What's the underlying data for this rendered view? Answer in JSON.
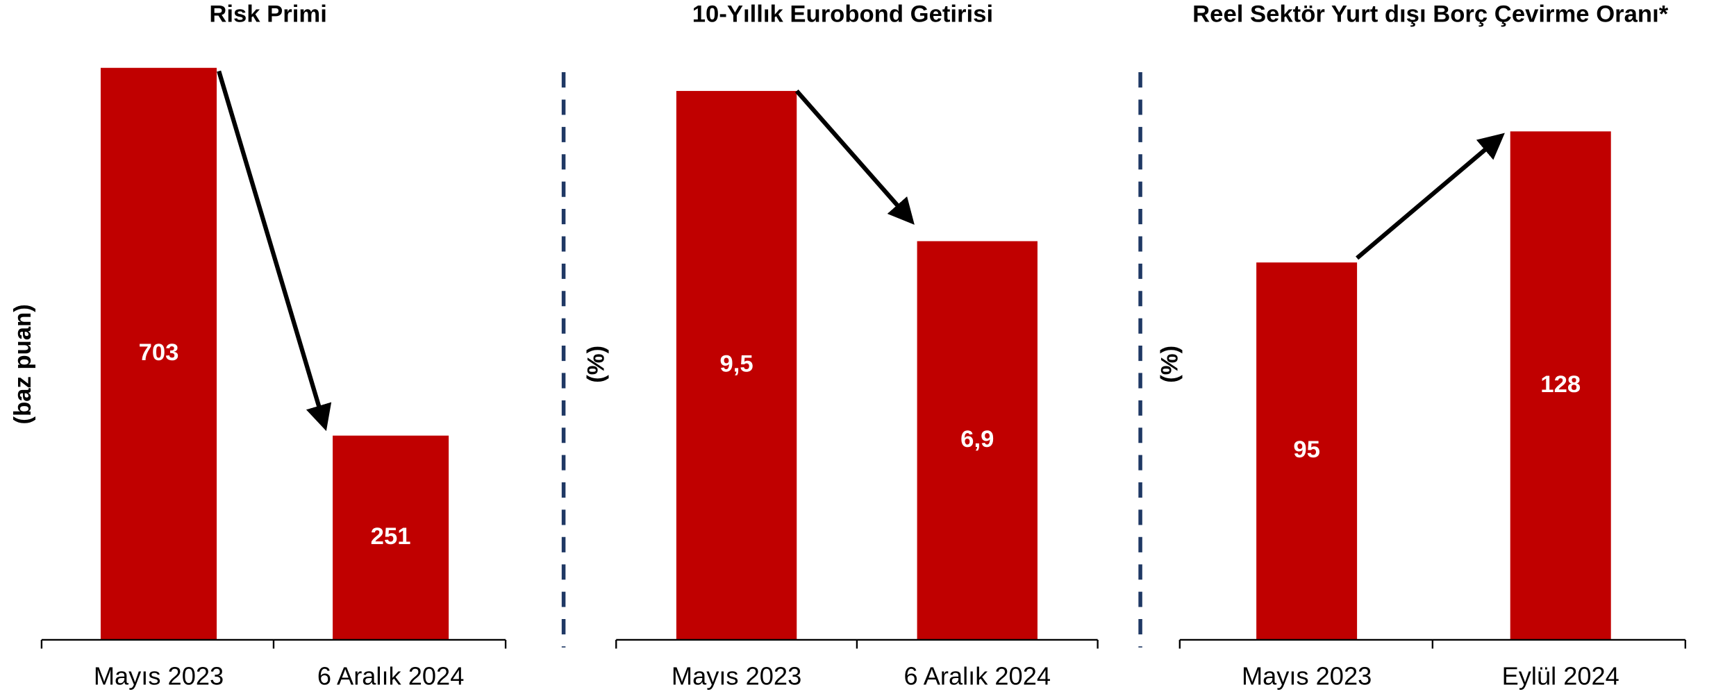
{
  "chart_data": [
    {
      "type": "bar",
      "title": "Risk Primi",
      "ylabel": "(baz puan)",
      "categories": [
        "Mayıs 2023",
        "6 Aralık 2024"
      ],
      "values": [
        703,
        251
      ],
      "color": "#c00000",
      "ylim": [
        0,
        703
      ]
    },
    {
      "type": "bar",
      "title": "10-Yıllık Eurobond Getirisi",
      "ylabel": "(%)",
      "categories": [
        "Mayıs 2023",
        "6 Aralık 2024"
      ],
      "values": [
        9.5,
        6.9
      ],
      "value_labels": [
        "9,5",
        "6,9"
      ],
      "color": "#c00000",
      "ylim": [
        0,
        9.9
      ]
    },
    {
      "type": "bar",
      "title": "Reel Sektör Yurt dışı Borç Çevirme Oranı*",
      "ylabel": "(%)",
      "categories": [
        "Mayıs 2023",
        "Eylül 2024"
      ],
      "values": [
        95,
        128
      ],
      "color": "#c00000",
      "ylim": [
        0,
        144
      ]
    }
  ]
}
